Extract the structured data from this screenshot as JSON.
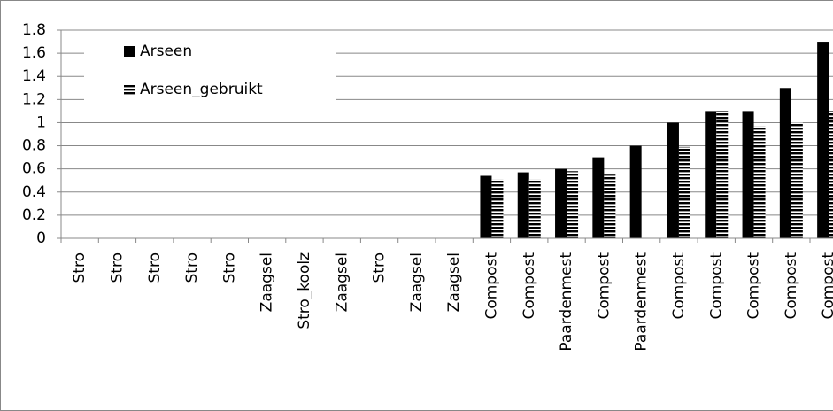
{
  "chart_data": {
    "type": "bar",
    "categories": [
      "Stro",
      "Stro",
      "Stro",
      "Stro",
      "Stro",
      "Zaagsel",
      "Stro_koolz",
      "Zaagsel",
      "Stro",
      "Zaagsel",
      "Zaagsel",
      "Compost",
      "Compost",
      "Paardenmest",
      "Compost",
      "Paardenmest",
      "Compost",
      "Compost",
      "Compost",
      "Compost",
      "Compost"
    ],
    "series": [
      {
        "name": "Arseen",
        "color": "#000000",
        "pattern": "solid",
        "values": [
          0,
          0,
          0,
          0,
          0,
          0,
          0,
          0,
          0,
          0,
          0,
          0.54,
          0.57,
          0.6,
          0.7,
          0.8,
          1.0,
          1.1,
          1.1,
          1.3,
          1.7
        ]
      },
      {
        "name": "Arseen_gebruikt",
        "color": "#000000",
        "pattern": "horizontal-stripes",
        "values": [
          0,
          0,
          0,
          0,
          0,
          0,
          0,
          0,
          0,
          0,
          0,
          0.51,
          0.51,
          0.58,
          0.55,
          null,
          0.79,
          1.1,
          0.97,
          1.0,
          1.1
        ]
      }
    ],
    "ylim": [
      0,
      1.8
    ],
    "yticks": [
      0,
      0.2,
      0.4,
      0.6,
      0.8,
      1,
      1.2,
      1.4,
      1.6,
      1.8
    ],
    "grid": true,
    "legend": "top-left"
  }
}
